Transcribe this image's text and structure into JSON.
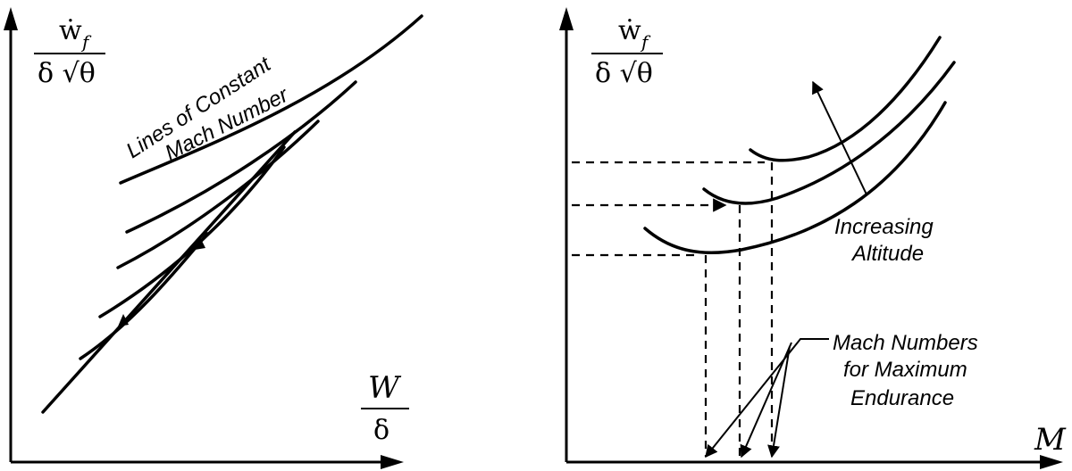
{
  "left_panel": {
    "y_axis": {
      "numerator": "ẇ",
      "subscript": "f",
      "denominator": "δ √θ"
    },
    "x_axis": {
      "numerator": "W",
      "denominator": "δ"
    },
    "annotation": {
      "line1": "Lines of Constant",
      "line2": "Mach Number"
    }
  },
  "right_panel": {
    "y_axis": {
      "numerator": "ẇ",
      "subscript": "f",
      "denominator": "δ √θ"
    },
    "x_axis": {
      "label": "M"
    },
    "arrow_label": {
      "line1": "Increasing",
      "line2": "Altitude"
    },
    "callout": {
      "line1": "Mach Numbers",
      "line2": "for Maximum",
      "line3": "Endurance"
    }
  }
}
